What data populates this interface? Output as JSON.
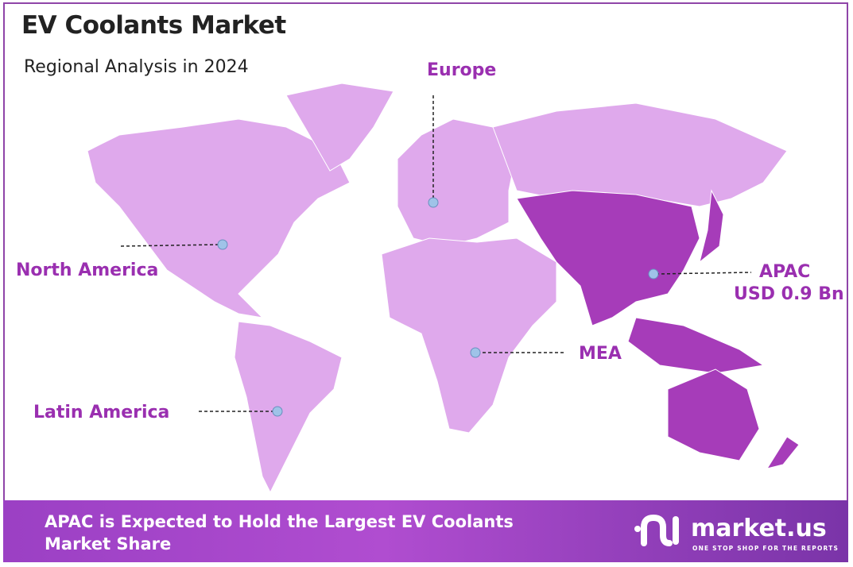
{
  "header": {
    "title": "EV Coolants Market",
    "subtitle": "Regional Analysis in 2024"
  },
  "regions": [
    {
      "name": "Europe",
      "value": ""
    },
    {
      "name": "North America",
      "value": ""
    },
    {
      "name": "APAC",
      "value": "USD 0.9 Bn"
    },
    {
      "name": "MEA",
      "value": ""
    },
    {
      "name": "Latin America",
      "value": ""
    }
  ],
  "colors": {
    "region_fill": "#dfa9ec",
    "highlight_fill": "#a63cb9",
    "label": "#9a2fb0",
    "marker": "#9fc3e8",
    "footer": "#9b40c4"
  },
  "footer": {
    "headline": "APAC is Expected to Hold the Largest EV Coolants Market Share"
  },
  "logo": {
    "name": "market.us",
    "tagline": "ONE STOP SHOP FOR THE REPORTS"
  }
}
